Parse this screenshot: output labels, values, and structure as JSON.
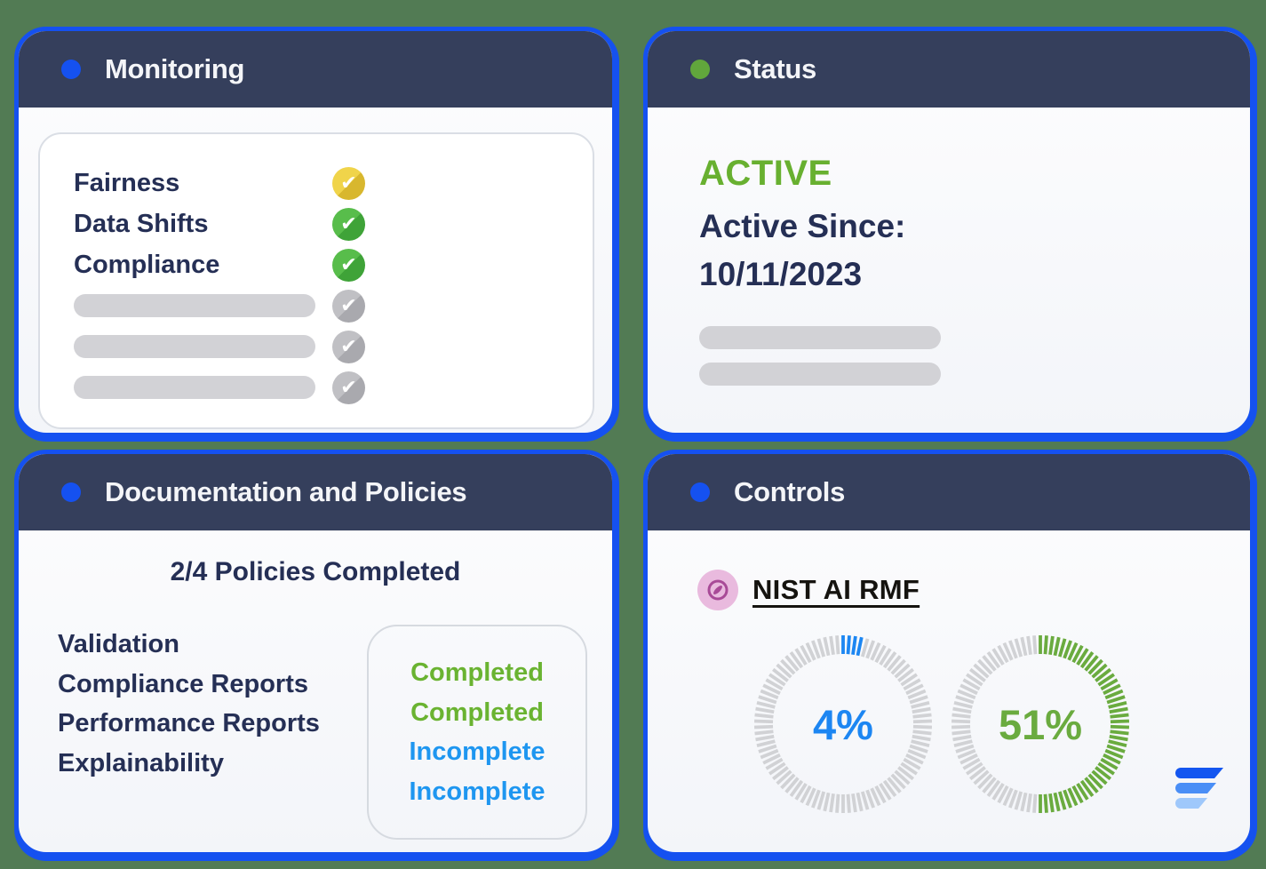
{
  "colors": {
    "background": "#527b54",
    "card_border": "#1551f0",
    "header_bg": "#353f5c",
    "navy_text": "#252f55",
    "active_green": "#68b030",
    "completed_green": "#6ab331",
    "incomplete_blue": "#1e96f0",
    "gauge_blue": "#1c86f2",
    "gauge_green": "#6aab3f",
    "gauge_track_gray": "#d1d2d5",
    "placeholder_gray": "#d2d2d6",
    "check_yellow": "#e9c93e",
    "check_green": "#4fb243",
    "check_gray": "#b5b5ba",
    "nist_icon_pink": "#e9bade",
    "nist_icon_purple": "#a84a97",
    "logo_blues": [
      "#1456f0",
      "#4a8ef6",
      "#9fc8fb"
    ]
  },
  "monitoring": {
    "title": "Monitoring",
    "items": [
      {
        "label": "Fairness",
        "placeholder": false,
        "status": "warning",
        "icon": "yellow-check-icon"
      },
      {
        "label": "Data Shifts",
        "placeholder": false,
        "status": "done",
        "icon": "green-check-icon"
      },
      {
        "label": "Compliance",
        "placeholder": false,
        "status": "done",
        "icon": "green-check-icon"
      },
      {
        "label": "",
        "placeholder": true,
        "status": "pending",
        "icon": "gray-check-icon"
      },
      {
        "label": "",
        "placeholder": true,
        "status": "pending",
        "icon": "gray-check-icon"
      },
      {
        "label": "",
        "placeholder": true,
        "status": "pending",
        "icon": "gray-check-icon"
      }
    ]
  },
  "status": {
    "title": "Status",
    "state": "ACTIVE",
    "since_label": "Active Since:",
    "since_date": "10/11/2023",
    "placeholder_bars": 2
  },
  "documentation": {
    "title": "Documentation and Policies",
    "summary": "2/4 Policies Completed",
    "policies": [
      {
        "name": "Validation",
        "status": "Completed"
      },
      {
        "name": "Compliance Reports",
        "status": "Completed"
      },
      {
        "name": "Performance Reports",
        "status": "Incomplete"
      },
      {
        "name": "Explainability",
        "status": "Incomplete"
      }
    ]
  },
  "controls": {
    "title": "Controls",
    "framework_label": "NIST AI RMF",
    "framework_icon": "compass-icon",
    "logo_icon": "flow-logo-icon",
    "gauges": [
      {
        "center_label": "4%",
        "percent": 4,
        "color": "#1c86f2"
      },
      {
        "center_label": "51%",
        "percent": 51,
        "color": "#6aab3f"
      }
    ]
  },
  "chart_data": [
    {
      "type": "pie",
      "style": "segmented-donut-gauge",
      "title": "NIST AI RMF gauge 1",
      "labels": [
        "complete",
        "remaining"
      ],
      "values": [
        4,
        96
      ],
      "center_label": "4%",
      "color": "#1c86f2",
      "track_color": "#d1d2d5",
      "start_angle_deg": -90,
      "direction": "clockwise"
    },
    {
      "type": "pie",
      "style": "segmented-donut-gauge",
      "title": "NIST AI RMF gauge 2",
      "labels": [
        "complete",
        "remaining"
      ],
      "values": [
        51,
        49
      ],
      "center_label": "51%",
      "color": "#6aab3f",
      "track_color": "#d1d2d5",
      "start_angle_deg": -90,
      "direction": "clockwise"
    }
  ]
}
